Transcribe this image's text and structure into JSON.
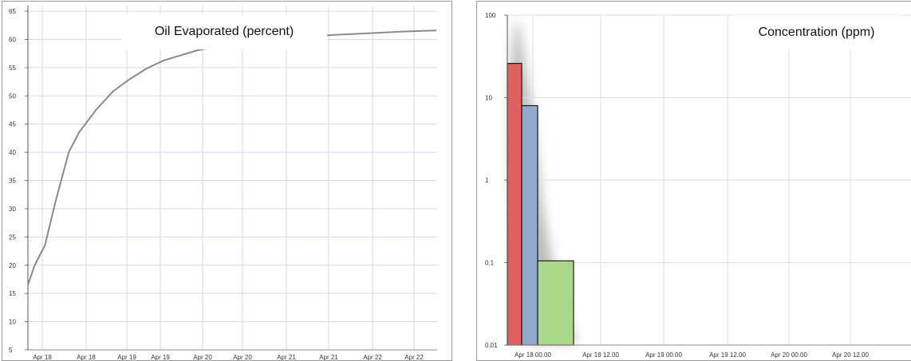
{
  "chart_data": [
    {
      "type": "line",
      "title": "Oil Evaporated (percent)",
      "xlabel": "",
      "ylabel": "",
      "ylim": [
        5,
        66
      ],
      "y_ticks": [
        5,
        10,
        15,
        20,
        25,
        30,
        35,
        40,
        45,
        50,
        55,
        60,
        65
      ],
      "x_tick_labels": [
        "Apr 18",
        "Apr 18",
        "Apr 19",
        "Apr 19",
        "Apr 20",
        "Apr 20",
        "Apr 21",
        "Apr 21",
        "Apr 22",
        "Apr 22"
      ],
      "grid": true,
      "line_color": "#8a8a8a",
      "series": [
        {
          "x": [
            0,
            0.2,
            0.5,
            0.8,
            1.2,
            1.5,
            2,
            2.5,
            3,
            3.5,
            4,
            5,
            6,
            7,
            8,
            9,
            10,
            11,
            12
          ],
          "values": [
            16.5,
            20,
            23.5,
            31,
            40,
            43.5,
            47.5,
            50.8,
            53,
            54.9,
            56.3,
            58.1,
            59.2,
            59.9,
            60.4,
            60.8,
            61.1,
            61.4,
            61.6
          ]
        }
      ]
    },
    {
      "type": "bar",
      "title": "Concentration (ppm)",
      "xlabel": "",
      "ylabel": "",
      "y_scale": "log",
      "ylim": [
        0.01,
        100
      ],
      "y_ticks": [
        0.01,
        0.1,
        1,
        10,
        100
      ],
      "y_tick_labels": [
        "0.01",
        "0.1",
        "1",
        "10",
        "100"
      ],
      "x_tick_labels": [
        "Apr 18 00.00",
        "Apr 18 12.00",
        "Apr 19 00.00",
        "Apr 19 12.00",
        "Apr 20 00.00",
        "Apr 20 12.00"
      ],
      "grid": true,
      "bars": [
        {
          "value": 26,
          "color": "#e06060"
        },
        {
          "value": 8,
          "color": "#8fa8cc"
        },
        {
          "value": 0.105,
          "color": "#a9d88a"
        }
      ]
    }
  ]
}
